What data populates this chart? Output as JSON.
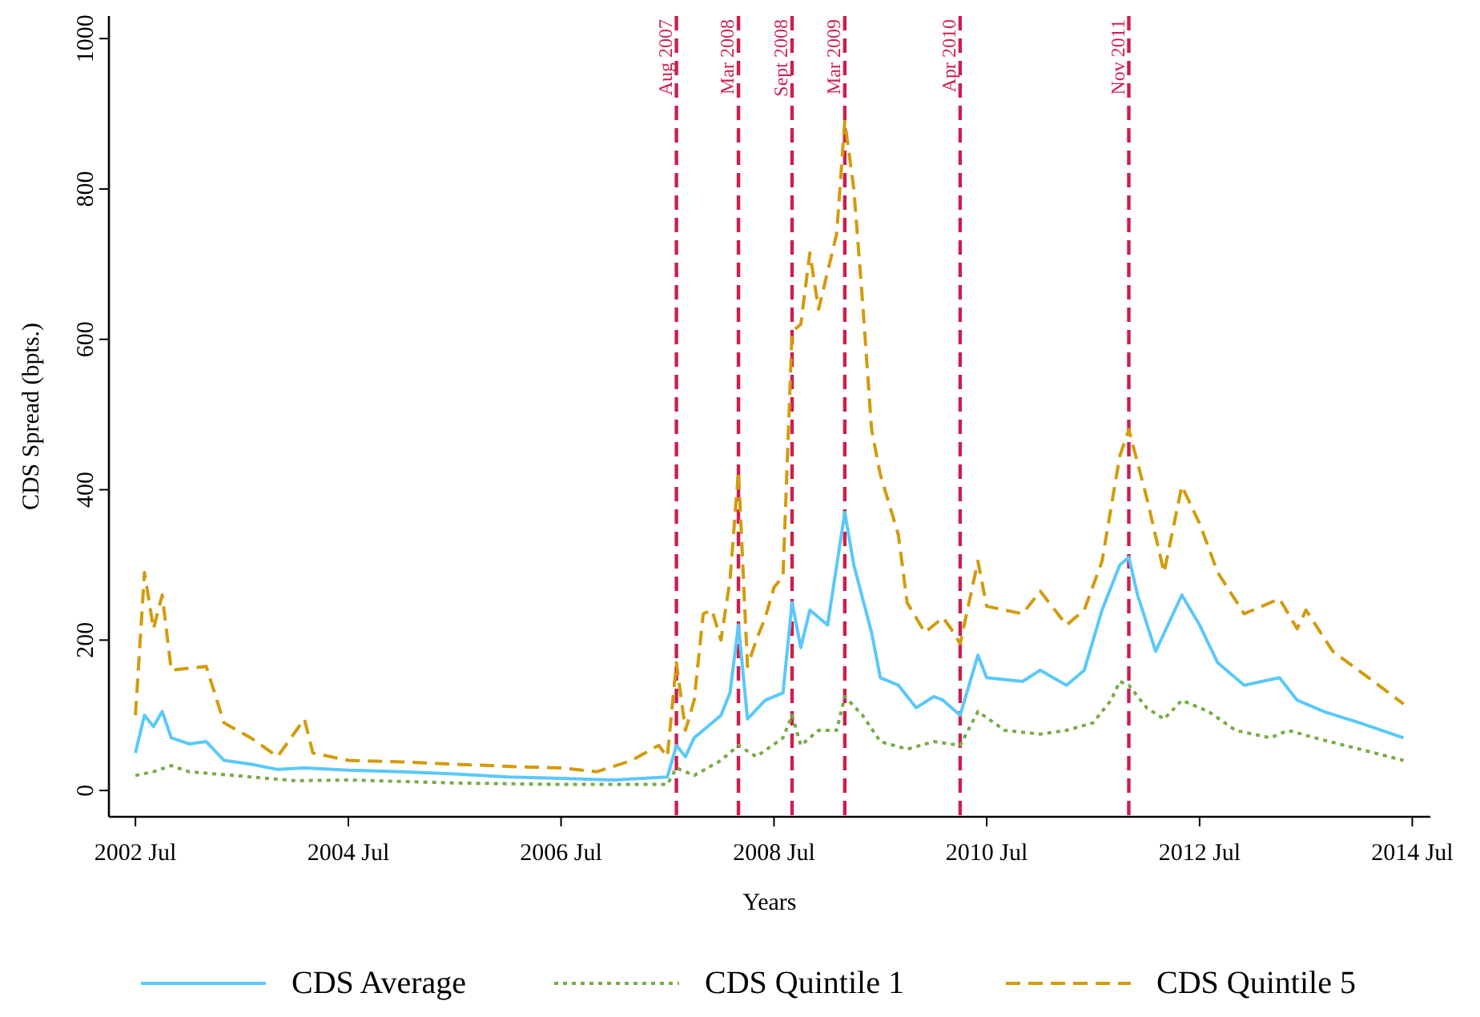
{
  "chart_data": {
    "type": "line",
    "xlabel": "Years",
    "ylabel": "CDS Spread (bpts.)",
    "xlim": [
      "2002-04",
      "2014-09"
    ],
    "ylim": [
      -35,
      1030
    ],
    "xticks": [
      {
        "value": "2002-07",
        "label": "2002 Jul"
      },
      {
        "value": "2004-07",
        "label": "2004 Jul"
      },
      {
        "value": "2006-07",
        "label": "2006 Jul"
      },
      {
        "value": "2008-07",
        "label": "2008 Jul"
      },
      {
        "value": "2010-07",
        "label": "2010 Jul"
      },
      {
        "value": "2012-07",
        "label": "2012 Jul"
      },
      {
        "value": "2014-07",
        "label": "2014 Jul"
      }
    ],
    "yticks": [
      0,
      200,
      400,
      600,
      800,
      1000
    ],
    "grid": false,
    "legend": "bottom",
    "marker": "none",
    "series": [
      {
        "name": "CDS Average",
        "color": "#5ac8fa",
        "line_style": "solid",
        "x": [
          "2002-07",
          "2002-08",
          "2002-09",
          "2002-10",
          "2002-11",
          "2003-01",
          "2003-03",
          "2003-05",
          "2003-08",
          "2003-11",
          "2004-02",
          "2004-07",
          "2005-01",
          "2005-07",
          "2006-01",
          "2006-07",
          "2007-01",
          "2007-07",
          "2007-08",
          "2007-09",
          "2007-10",
          "2007-11",
          "2008-01",
          "2008-02",
          "2008-03",
          "2008-04",
          "2008-06",
          "2008-08",
          "2008-09",
          "2008-10",
          "2008-11",
          "2009-01",
          "2009-03",
          "2009-04",
          "2009-06",
          "2009-07",
          "2009-09",
          "2009-11",
          "2010-01",
          "2010-02",
          "2010-04",
          "2010-06",
          "2010-07",
          "2010-11",
          "2011-01",
          "2011-04",
          "2011-06",
          "2011-08",
          "2011-10",
          "2011-11",
          "2011-12",
          "2012-02",
          "2012-05",
          "2012-07",
          "2012-09",
          "2012-12",
          "2013-04",
          "2013-06",
          "2013-09",
          "2014-01",
          "2014-06"
        ],
        "values": [
          50,
          100,
          85,
          105,
          70,
          62,
          65,
          40,
          35,
          28,
          30,
          27,
          25,
          22,
          18,
          16,
          14,
          18,
          60,
          45,
          70,
          80,
          100,
          130,
          220,
          95,
          120,
          130,
          250,
          190,
          240,
          220,
          370,
          300,
          210,
          150,
          140,
          110,
          125,
          120,
          100,
          180,
          150,
          145,
          160,
          140,
          160,
          240,
          300,
          310,
          260,
          185,
          260,
          220,
          170,
          140,
          150,
          120,
          105,
          90,
          70
        ]
      },
      {
        "name": "CDS Quintile 1",
        "color": "#77ac45",
        "line_style": "dotted",
        "x": [
          "2002-07",
          "2002-09",
          "2002-11",
          "2003-01",
          "2003-06",
          "2004-01",
          "2004-07",
          "2005-07",
          "2006-07",
          "2007-07",
          "2007-08",
          "2007-10",
          "2008-01",
          "2008-03",
          "2008-05",
          "2008-08",
          "2008-09",
          "2008-10",
          "2008-12",
          "2009-02",
          "2009-03",
          "2009-05",
          "2009-07",
          "2009-10",
          "2010-01",
          "2010-04",
          "2010-06",
          "2010-09",
          "2011-01",
          "2011-04",
          "2011-07",
          "2011-09",
          "2011-10",
          "2011-11",
          "2012-01",
          "2012-03",
          "2012-05",
          "2012-08",
          "2012-11",
          "2013-03",
          "2013-05",
          "2013-08",
          "2014-01",
          "2014-06"
        ],
        "values": [
          20,
          25,
          33,
          25,
          20,
          13,
          14,
          10,
          8,
          8,
          30,
          20,
          40,
          60,
          45,
          70,
          100,
          60,
          80,
          80,
          125,
          100,
          65,
          55,
          65,
          60,
          105,
          80,
          75,
          80,
          90,
          120,
          145,
          140,
          110,
          95,
          120,
          105,
          80,
          70,
          80,
          70,
          55,
          40
        ]
      },
      {
        "name": "CDS Quintile 5",
        "color": "#d39b0c",
        "line_style": "dashed",
        "x": [
          "2002-07",
          "2002-08",
          "2002-09",
          "2002-10",
          "2002-11",
          "2003-03",
          "2003-05",
          "2003-08",
          "2003-11",
          "2004-02",
          "2004-03",
          "2004-07",
          "2005-01",
          "2005-07",
          "2006-01",
          "2006-07",
          "2006-11",
          "2007-03",
          "2007-06",
          "2007-07",
          "2007-08",
          "2007-09",
          "2007-10",
          "2007-11",
          "2007-12",
          "2008-01",
          "2008-02",
          "2008-03",
          "2008-04",
          "2008-05",
          "2008-06",
          "2008-07",
          "2008-08",
          "2008-09",
          "2008-10",
          "2008-11",
          "2008-12",
          "2009-01",
          "2009-02",
          "2009-03",
          "2009-04",
          "2009-05",
          "2009-06",
          "2009-07",
          "2009-08",
          "2009-09",
          "2009-10",
          "2009-12",
          "2010-01",
          "2010-02",
          "2010-03",
          "2010-04",
          "2010-06",
          "2010-07",
          "2010-11",
          "2011-01",
          "2011-04",
          "2011-06",
          "2011-08",
          "2011-10",
          "2011-11",
          "2012-01",
          "2012-03",
          "2012-05",
          "2012-07",
          "2012-09",
          "2012-12",
          "2013-04",
          "2013-06",
          "2013-07",
          "2013-10",
          "2014-02",
          "2014-06"
        ],
        "values": [
          100,
          290,
          215,
          260,
          160,
          165,
          90,
          70,
          45,
          95,
          50,
          40,
          38,
          35,
          32,
          30,
          25,
          40,
          60,
          45,
          170,
          80,
          120,
          235,
          240,
          200,
          280,
          425,
          165,
          200,
          230,
          270,
          285,
          610,
          620,
          715,
          640,
          690,
          740,
          890,
          800,
          650,
          480,
          420,
          380,
          340,
          250,
          210,
          220,
          230,
          215,
          195,
          305,
          245,
          235,
          265,
          220,
          240,
          305,
          445,
          480,
          390,
          290,
          405,
          355,
          290,
          235,
          255,
          215,
          240,
          185,
          150,
          115
        ]
      }
    ],
    "ref_lines": [
      {
        "axis": "x",
        "value": "2007-08",
        "label": "Aug 2007",
        "color": "#cc1f4e",
        "line_style": "dashed"
      },
      {
        "axis": "x",
        "value": "2008-03",
        "label": "Mar 2008",
        "color": "#cc1f4e",
        "line_style": "dashed"
      },
      {
        "axis": "x",
        "value": "2008-09",
        "label": "Sept 2008",
        "color": "#cc1f4e",
        "line_style": "dashed"
      },
      {
        "axis": "x",
        "value": "2009-03",
        "label": "Mar 2009",
        "color": "#cc1f4e",
        "line_style": "dashed"
      },
      {
        "axis": "x",
        "value": "2010-04",
        "label": "Apr 2010",
        "color": "#cc1f4e",
        "line_style": "dashed"
      },
      {
        "axis": "x",
        "value": "2011-11",
        "label": "Nov 2011",
        "color": "#cc1f4e",
        "line_style": "dashed"
      }
    ]
  }
}
